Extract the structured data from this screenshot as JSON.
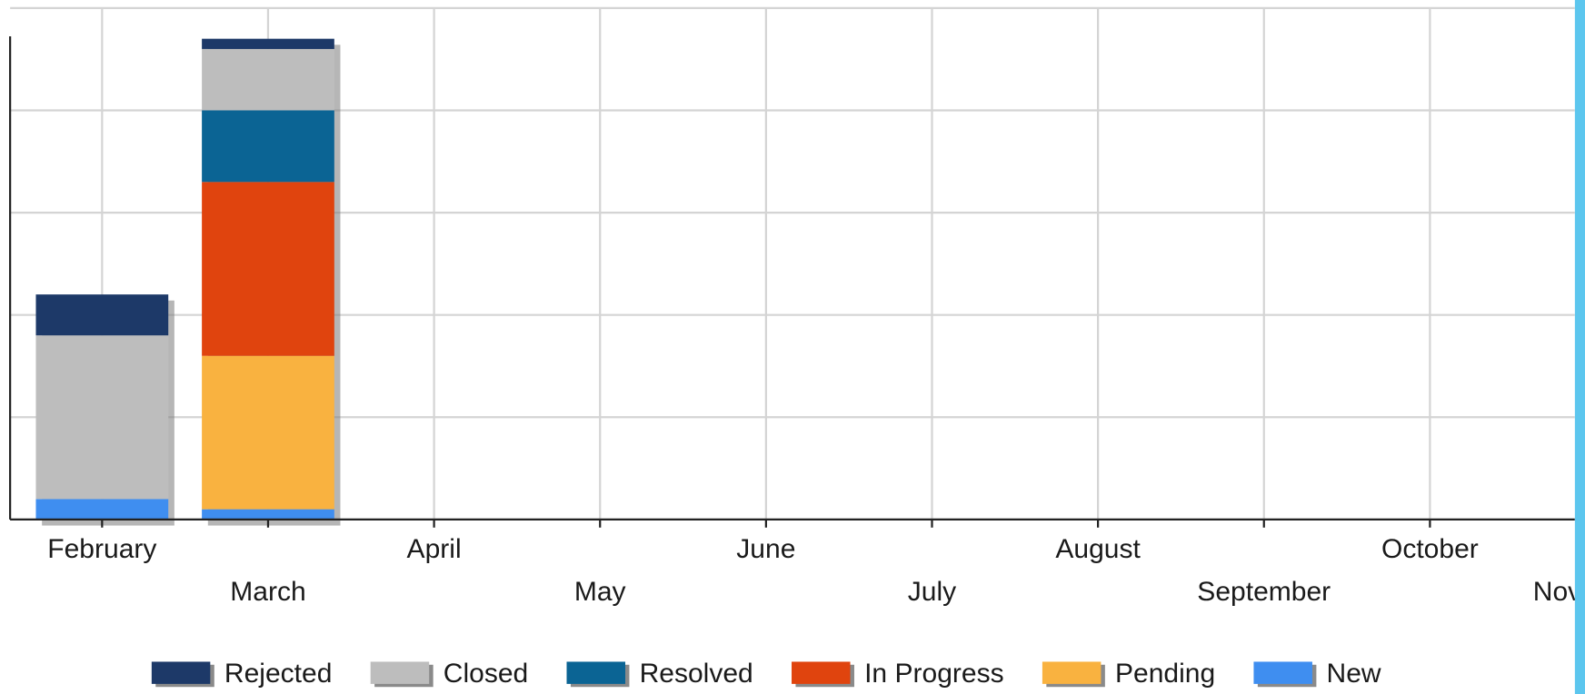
{
  "chart_data": {
    "type": "stacked-bar",
    "categories": [
      "February",
      "March",
      "April",
      "May",
      "June",
      "July",
      "August",
      "September",
      "October",
      "November"
    ],
    "series": [
      {
        "name": "Rejected",
        "color": "#1d3968",
        "values": [
          4,
          1,
          null,
          null,
          null,
          null,
          null,
          null,
          null,
          null
        ]
      },
      {
        "name": "Closed",
        "color": "#bdbdbd",
        "values": [
          16,
          6,
          null,
          null,
          null,
          null,
          null,
          null,
          null,
          null
        ]
      },
      {
        "name": "Resolved",
        "color": "#0b6494",
        "values": [
          0,
          7,
          null,
          null,
          null,
          null,
          null,
          null,
          null,
          null
        ]
      },
      {
        "name": "In Progress",
        "color": "#e0440e",
        "values": [
          0,
          17,
          null,
          null,
          null,
          null,
          null,
          null,
          null,
          null
        ]
      },
      {
        "name": "Pending",
        "color": "#f9b240",
        "values": [
          0,
          15,
          null,
          null,
          null,
          null,
          null,
          null,
          null,
          null
        ]
      },
      {
        "name": "New",
        "color": "#3f8ef0",
        "values": [
          2,
          1,
          null,
          null,
          null,
          null,
          null,
          null,
          null,
          null
        ]
      }
    ],
    "ylim": [
      0,
      50
    ],
    "yticks": [
      0,
      10,
      20,
      30,
      40,
      50
    ],
    "grid": true,
    "legend": "bottom"
  }
}
